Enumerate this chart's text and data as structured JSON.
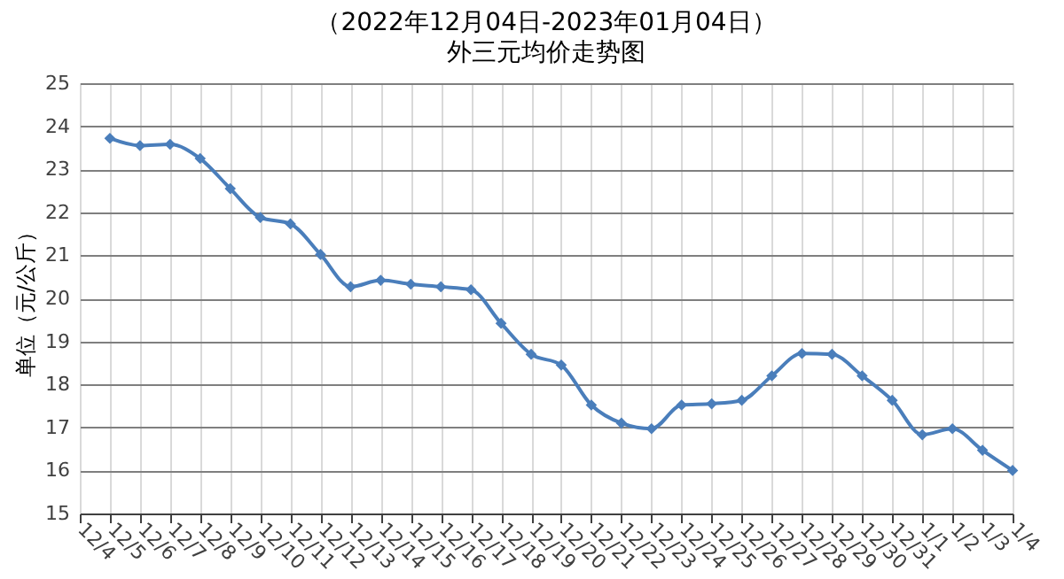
{
  "chart_data": {
    "type": "line",
    "title": "（2022年12月04日-2023年01月04日）",
    "subtitle": "外三元均价走势图",
    "ylabel": "单位（元/公斤）",
    "categories": [
      "12/4",
      "12/5",
      "12/6",
      "12/7",
      "12/8",
      "12/9",
      "12/10",
      "12/11",
      "12/12",
      "12/13",
      "12/14",
      "12/15",
      "12/16",
      "12/17",
      "12/18",
      "12/19",
      "12/20",
      "12/21",
      "12/22",
      "12/23",
      "12/24",
      "12/25",
      "12/26",
      "12/27",
      "12/28",
      "12/29",
      "12/30",
      "12/31",
      "1/1",
      "1/2",
      "1/3",
      "1/4"
    ],
    "series": [
      {
        "color": "#4a7ebb",
        "values": [
          null,
          23.72,
          23.55,
          23.58,
          23.25,
          22.55,
          21.88,
          21.73,
          21.02,
          20.27,
          20.42,
          20.33,
          20.27,
          20.2,
          19.42,
          18.7,
          18.45,
          17.52,
          17.1,
          16.97,
          17.52,
          17.55,
          17.63,
          18.2,
          18.72,
          18.7,
          18.2,
          17.63,
          16.83,
          16.97,
          16.47,
          16.0
        ]
      }
    ],
    "ylim": [
      15,
      25
    ],
    "yticks": [
      15,
      16,
      17,
      18,
      19,
      20,
      21,
      22,
      23,
      24,
      25
    ],
    "grid": true,
    "marker": "diamond",
    "line_style": "solid"
  }
}
